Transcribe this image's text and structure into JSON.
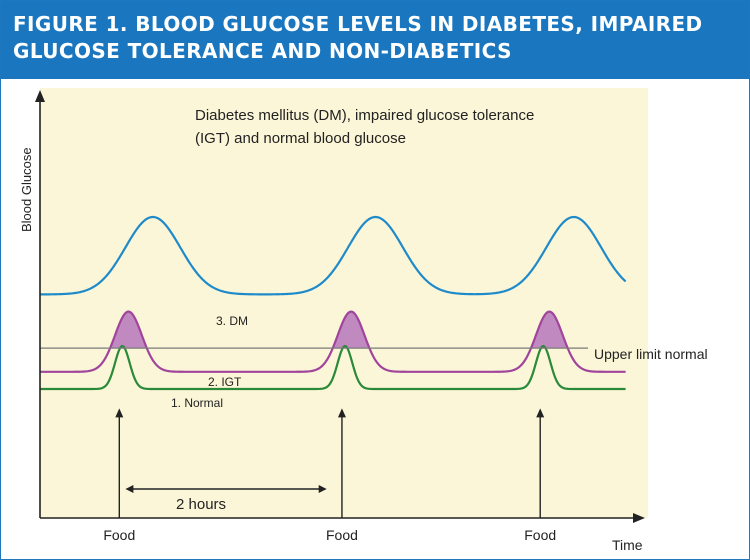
{
  "figure_title": "FIGURE 1. BLOOD GLUCOSE LEVELS IN DIABETES, IMPAIRED GLUCOSE TOLERANCE AND NON-DIABETICS",
  "chart_data": {
    "type": "line",
    "title": "Diabetes mellitus (DM), impaired glucose tolerance (IGT) and normal blood glucose",
    "title_lines": [
      "Diabetes mellitus (DM), impaired glucose tolerance",
      "(IGT) and normal blood glucose"
    ],
    "xlabel": "Time",
    "ylabel": "Blood Glucose",
    "axis_numbers_shown": false,
    "x_range": [
      0,
      10
    ],
    "y_range": [
      0,
      10
    ],
    "threshold": {
      "label": "Upper limit normal",
      "y": 3.95
    },
    "food_events": [
      {
        "label": "Food",
        "x": 1.3
      },
      {
        "label": "Food",
        "x": 4.95
      },
      {
        "label": "Food",
        "x": 8.2
      }
    ],
    "interval_annotation": {
      "label": "2 hours",
      "x_start": 1.4,
      "x_end": 4.7
    },
    "series": [
      {
        "name": "3. DM",
        "color": "#1f8ac9",
        "baseline": 5.2,
        "peak": 7.0,
        "peak_width": 0.45,
        "peak_offset": 0.55
      },
      {
        "name": "2. IGT",
        "color": "#a0449c",
        "fill": "#c08ac0",
        "baseline": 3.4,
        "peak": 4.8,
        "peak_width": 0.22,
        "peak_offset": 0.15
      },
      {
        "name": "1. Normal",
        "color": "#2a8a3a",
        "baseline": 3.0,
        "peak": 4.0,
        "peak_width": 0.12,
        "peak_offset": 0.05
      }
    ],
    "series_x_range": [
      0,
      9.6
    ],
    "grid": false,
    "plot_background": "#fbf6d8",
    "axis_color": "#222222",
    "threshold_color": "#7a7a7a"
  }
}
